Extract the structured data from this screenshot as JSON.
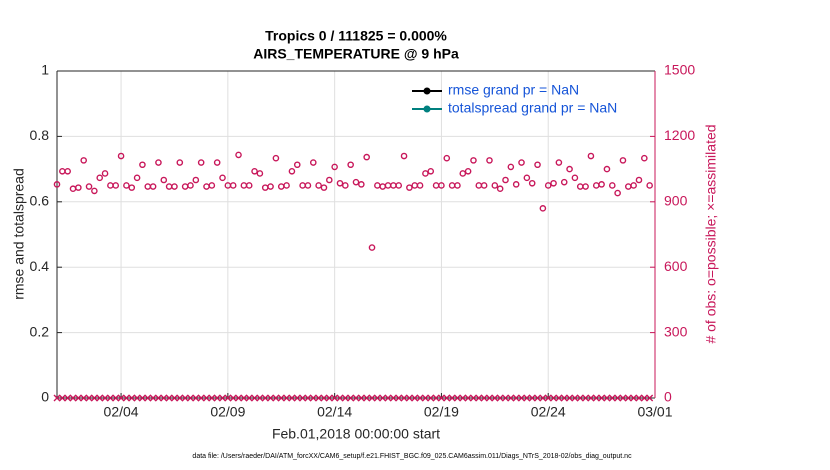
{
  "chart_data": {
    "type": "line",
    "title": "Tropics 0 / 111825 = 0.000%",
    "subtitle": "AIRS_TEMPERATURE @ 9 hPa",
    "x_label": "Feb.01,2018 00:00:00 start",
    "y_label": "rmse and totalspread",
    "y2_label": "# of obs: o=possible; ×=assimilated",
    "footer": "data file: /Users/raeder/DAI/ATM_forcXX/CAM6_setup/f.e21.FHIST_BGC.f09_025.CAM6assim.011/Diags_NTrS_2018-02/obs_diag_output.nc",
    "xlim": [
      0,
      28
    ],
    "xticks": [
      {
        "value": 3,
        "label": "02/04"
      },
      {
        "value": 8,
        "label": "02/09"
      },
      {
        "value": 13,
        "label": "02/14"
      },
      {
        "value": 18,
        "label": "02/19"
      },
      {
        "value": 23,
        "label": "02/24"
      },
      {
        "value": 28,
        "label": "03/01"
      }
    ],
    "ylim": [
      0,
      1
    ],
    "yticks": [
      0,
      0.2,
      0.4,
      0.6,
      0.8,
      1
    ],
    "y2lim": [
      0,
      1500
    ],
    "y2ticks": [
      0,
      300,
      600,
      900,
      1200,
      1500
    ],
    "grid": true,
    "legend": "upper right",
    "x": [
      0,
      0.25,
      0.5,
      0.75,
      1,
      1.25,
      1.5,
      1.75,
      2,
      2.25,
      2.5,
      2.75,
      3,
      3.25,
      3.5,
      3.75,
      4,
      4.25,
      4.5,
      4.75,
      5,
      5.25,
      5.5,
      5.75,
      6,
      6.25,
      6.5,
      6.75,
      7,
      7.25,
      7.5,
      7.75,
      8,
      8.25,
      8.5,
      8.75,
      9,
      9.25,
      9.5,
      9.75,
      10,
      10.25,
      10.5,
      10.75,
      11,
      11.25,
      11.5,
      11.75,
      12,
      12.25,
      12.5,
      12.75,
      13,
      13.25,
      13.5,
      13.75,
      14,
      14.25,
      14.5,
      14.75,
      15,
      15.25,
      15.5,
      15.75,
      16,
      16.25,
      16.5,
      16.75,
      17,
      17.25,
      17.5,
      17.75,
      18,
      18.25,
      18.5,
      18.75,
      19,
      19.25,
      19.5,
      19.75,
      20,
      20.25,
      20.5,
      20.75,
      21,
      21.25,
      21.5,
      21.75,
      22,
      22.25,
      22.5,
      22.75,
      23,
      23.25,
      23.5,
      23.75,
      24,
      24.25,
      24.5,
      24.75,
      25,
      25.25,
      25.5,
      25.75,
      26,
      26.25,
      26.5,
      26.75,
      27,
      27.25,
      27.5,
      27.75
    ],
    "series": [
      {
        "name": "rmse grand pr = NaN",
        "color": "#000000",
        "values": [
          null,
          null,
          null,
          null,
          null,
          null,
          null,
          null,
          null,
          null,
          null,
          null,
          null,
          null,
          null,
          null,
          null,
          null,
          null,
          null,
          null,
          null,
          null,
          null,
          null,
          null,
          null,
          null,
          null,
          null,
          null,
          null,
          null,
          null,
          null,
          null,
          null,
          null,
          null,
          null,
          null,
          null,
          null,
          null,
          null,
          null,
          null,
          null,
          null,
          null,
          null,
          null,
          null,
          null,
          null,
          null,
          null,
          null,
          null,
          null,
          null,
          null,
          null,
          null,
          null,
          null,
          null,
          null,
          null,
          null,
          null,
          null,
          null,
          null,
          null,
          null,
          null,
          null,
          null,
          null,
          null,
          null,
          null,
          null,
          null,
          null,
          null,
          null,
          null,
          null,
          null,
          null,
          null,
          null,
          null,
          null,
          null,
          null,
          null,
          null,
          null,
          null,
          null,
          null,
          null,
          null,
          null,
          null,
          null,
          null,
          null,
          null
        ]
      },
      {
        "name": "totalspread grand pr = NaN",
        "color": "#00807f",
        "values": [
          null,
          null,
          null,
          null,
          null,
          null,
          null,
          null,
          null,
          null,
          null,
          null,
          null,
          null,
          null,
          null,
          null,
          null,
          null,
          null,
          null,
          null,
          null,
          null,
          null,
          null,
          null,
          null,
          null,
          null,
          null,
          null,
          null,
          null,
          null,
          null,
          null,
          null,
          null,
          null,
          null,
          null,
          null,
          null,
          null,
          null,
          null,
          null,
          null,
          null,
          null,
          null,
          null,
          null,
          null,
          null,
          null,
          null,
          null,
          null,
          null,
          null,
          null,
          null,
          null,
          null,
          null,
          null,
          null,
          null,
          null,
          null,
          null,
          null,
          null,
          null,
          null,
          null,
          null,
          null,
          null,
          null,
          null,
          null,
          null,
          null,
          null,
          null,
          null,
          null,
          null,
          null,
          null,
          null,
          null,
          null,
          null,
          null,
          null,
          null,
          null,
          null,
          null,
          null,
          null,
          null,
          null,
          null,
          null,
          null,
          null,
          null
        ]
      },
      {
        "color": "#c8175a",
        "axis": "y2",
        "marker": "o",
        "values": [
          980,
          1040,
          1040,
          960,
          965,
          1090,
          970,
          950,
          1010,
          1030,
          975,
          975,
          1110,
          975,
          965,
          1010,
          1070,
          970,
          970,
          1080,
          1000,
          970,
          970,
          1080,
          970,
          975,
          1000,
          1080,
          970,
          975,
          1080,
          1010,
          975,
          975,
          1115,
          975,
          975,
          1040,
          1030,
          965,
          970,
          1100,
          970,
          975,
          1040,
          1070,
          975,
          975,
          1080,
          975,
          965,
          1000,
          1060,
          985,
          975,
          1070,
          990,
          980,
          1105,
          690,
          975,
          970,
          975,
          975,
          975,
          1110,
          965,
          975,
          975,
          1030,
          1040,
          975,
          975,
          1100,
          975,
          975,
          1030,
          1040,
          1090,
          975,
          975,
          1090,
          975,
          960,
          1000,
          1060,
          980,
          1080,
          1010,
          985,
          1070,
          870,
          975,
          985,
          1080,
          990,
          1050,
          1010,
          970,
          970,
          1110,
          975,
          980,
          1050,
          975,
          940,
          1090,
          970,
          975,
          1000,
          1100,
          975
        ]
      },
      {
        "color": "#c8175a",
        "axis": "y2",
        "marker": "x",
        "values": [
          0,
          0,
          0,
          0,
          0,
          0,
          0,
          0,
          0,
          0,
          0,
          0,
          0,
          0,
          0,
          0,
          0,
          0,
          0,
          0,
          0,
          0,
          0,
          0,
          0,
          0,
          0,
          0,
          0,
          0,
          0,
          0,
          0,
          0,
          0,
          0,
          0,
          0,
          0,
          0,
          0,
          0,
          0,
          0,
          0,
          0,
          0,
          0,
          0,
          0,
          0,
          0,
          0,
          0,
          0,
          0,
          0,
          0,
          0,
          0,
          0,
          0,
          0,
          0,
          0,
          0,
          0,
          0,
          0,
          0,
          0,
          0,
          0,
          0,
          0,
          0,
          0,
          0,
          0,
          0,
          0,
          0,
          0,
          0,
          0,
          0,
          0,
          0,
          0,
          0,
          0,
          0,
          0,
          0,
          0,
          0,
          0,
          0,
          0,
          0,
          0,
          0,
          0,
          0,
          0,
          0,
          0,
          0,
          0,
          0,
          0,
          0
        ]
      }
    ]
  }
}
